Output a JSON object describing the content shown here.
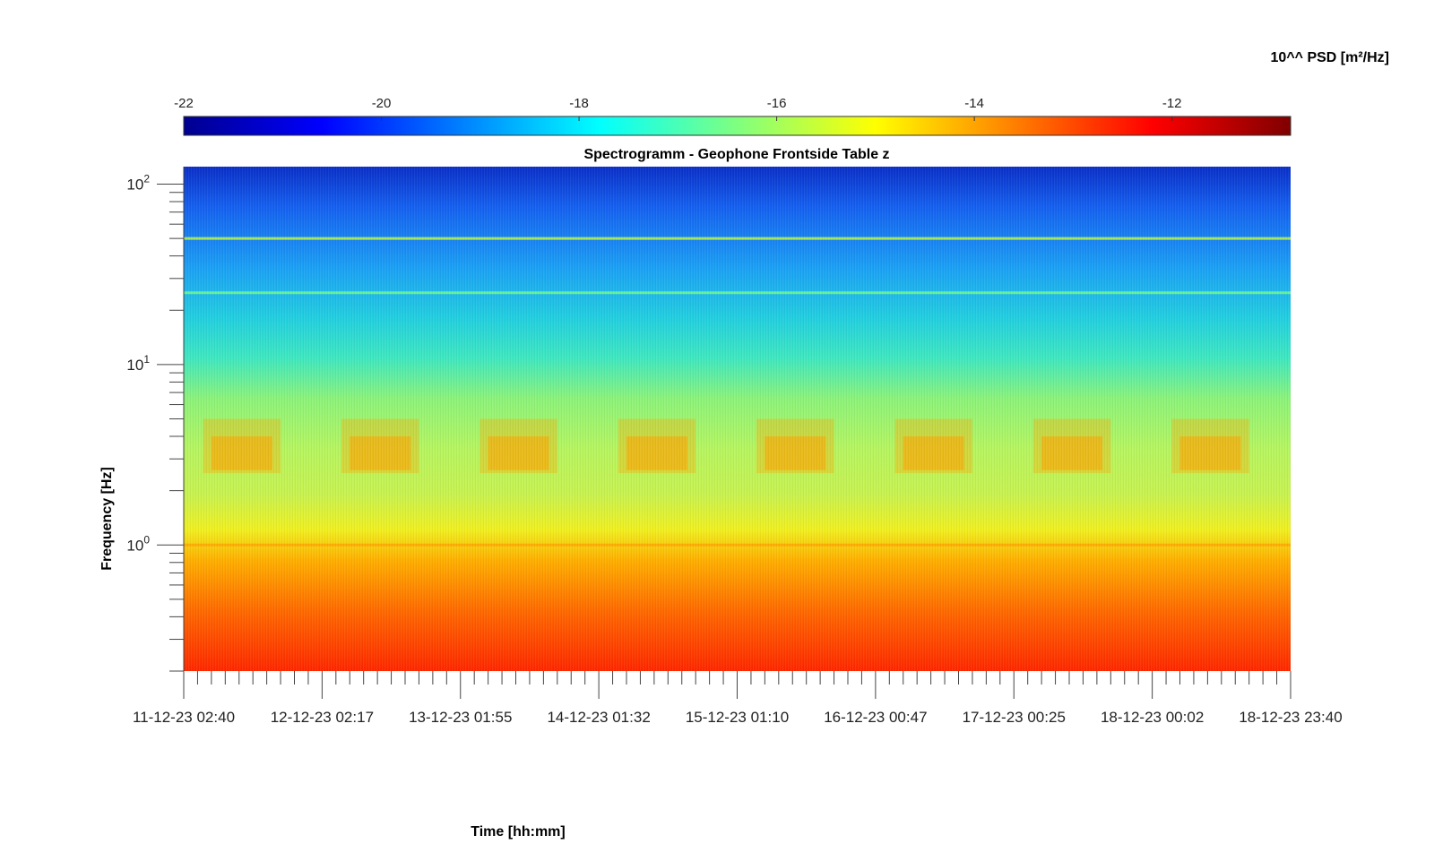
{
  "chart_data": {
    "type": "heatmap",
    "title": "Spectrogramm - Geophone Frontside Table z",
    "xlabel": "Time [hh:mm]",
    "ylabel": "Frequency [Hz]",
    "colorbar_label": "10^^ PSD [m²/Hz]",
    "colorbar_range": [
      -22,
      -10.8
    ],
    "colorbar_ticks": [
      -22,
      -20,
      -18,
      -16,
      -14,
      -12
    ],
    "colormap": "jet",
    "y_scale": "log",
    "ylim": [
      0.2,
      125
    ],
    "y_ticks": [
      {
        "base": "10",
        "exp": "0",
        "value": 1
      },
      {
        "base": "10",
        "exp": "1",
        "value": 10
      },
      {
        "base": "10",
        "exp": "2",
        "value": 100
      }
    ],
    "x_ticks": [
      "11-12-23 02:40",
      "12-12-23 02:17",
      "13-12-23 01:55",
      "14-12-23 01:32",
      "15-12-23 01:10",
      "16-12-23 00:47",
      "17-12-23 00:25",
      "18-12-23 00:02",
      "18-12-23 23:40"
    ],
    "approx_psd_log10_by_frequency": [
      {
        "freq_hz": 120,
        "psd": -21.0
      },
      {
        "freq_hz": 50,
        "psd": -19.0
      },
      {
        "freq_hz": 20,
        "psd": -18.3
      },
      {
        "freq_hz": 10,
        "psd": -17.5
      },
      {
        "freq_hz": 5,
        "psd": -16.3
      },
      {
        "freq_hz": 3,
        "psd": -15.8
      },
      {
        "freq_hz": 1.5,
        "psd": -16.2
      },
      {
        "freq_hz": 1,
        "psd": -15.0
      },
      {
        "freq_hz": 0.6,
        "psd": -13.5
      },
      {
        "freq_hz": 0.3,
        "psd": -12.3
      },
      {
        "freq_hz": 0.2,
        "psd": -12.0
      }
    ],
    "line_peaks": [
      {
        "freq_hz": 50,
        "psd": -15.6
      },
      {
        "freq_hz": 25,
        "psd": -16.5
      },
      {
        "freq_hz": 1,
        "psd": -14.0
      }
    ],
    "daily_activity_bursts_frequency_hz": [
      2.5,
      5
    ],
    "daily_activity_bursts_psd": -14.0
  }
}
